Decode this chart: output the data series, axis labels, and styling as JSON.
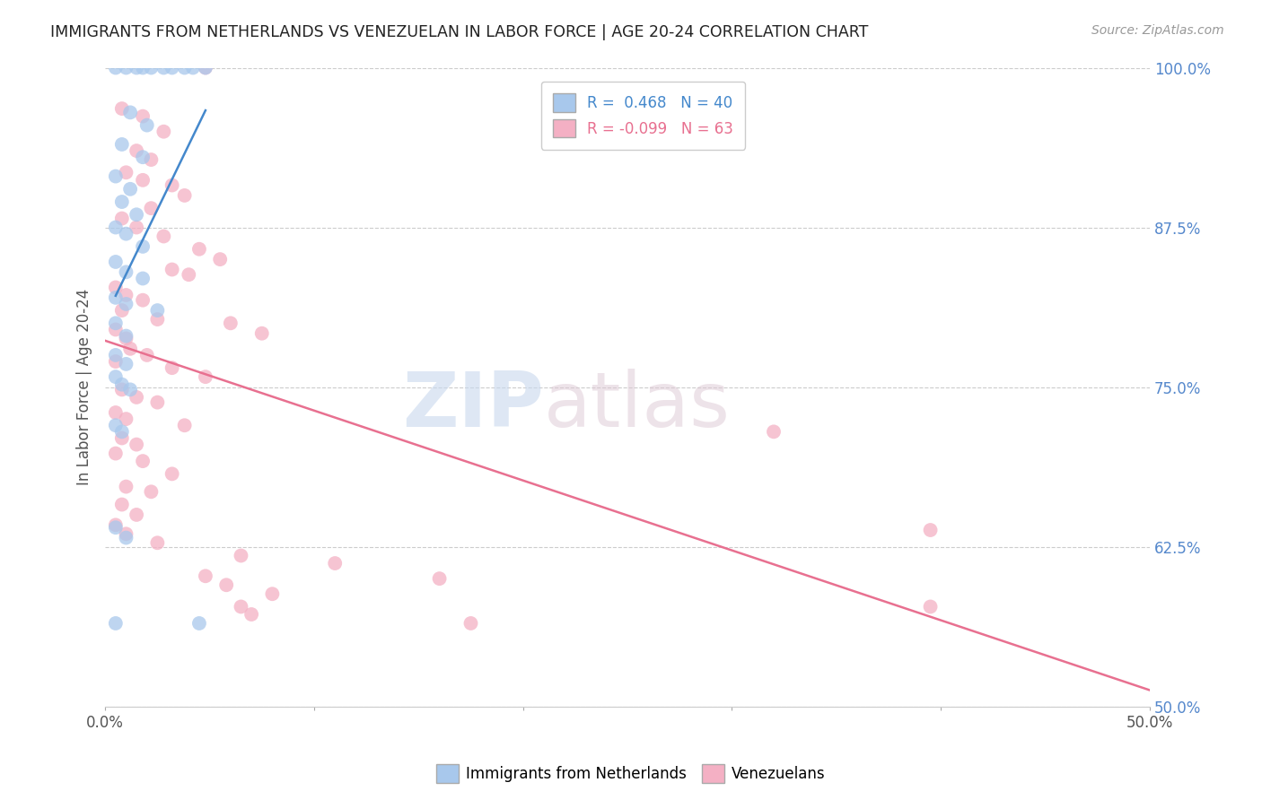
{
  "title": "IMMIGRANTS FROM NETHERLANDS VS VENEZUELAN IN LABOR FORCE | AGE 20-24 CORRELATION CHART",
  "source": "Source: ZipAtlas.com",
  "ylabel": "In Labor Force | Age 20-24",
  "xlim": [
    0.0,
    0.5
  ],
  "ylim": [
    0.5,
    1.0
  ],
  "xticks": [
    0.0,
    0.1,
    0.2,
    0.3,
    0.4,
    0.5
  ],
  "xticklabels": [
    "0.0%",
    "",
    "",
    "",
    "",
    "50.0%"
  ],
  "yticks": [
    0.5,
    0.625,
    0.75,
    0.875,
    1.0
  ],
  "yticklabels": [
    "50.0%",
    "62.5%",
    "75.0%",
    "87.5%",
    "100.0%"
  ],
  "blue_color": "#A8C8EC",
  "pink_color": "#F4B0C4",
  "blue_line_color": "#4488CC",
  "pink_line_color": "#E87090",
  "blue_points": [
    [
      0.005,
      1.0
    ],
    [
      0.01,
      1.0
    ],
    [
      0.015,
      1.0
    ],
    [
      0.018,
      1.0
    ],
    [
      0.022,
      1.0
    ],
    [
      0.028,
      1.0
    ],
    [
      0.032,
      1.0
    ],
    [
      0.038,
      1.0
    ],
    [
      0.042,
      1.0
    ],
    [
      0.048,
      1.0
    ],
    [
      0.012,
      0.965
    ],
    [
      0.02,
      0.955
    ],
    [
      0.008,
      0.94
    ],
    [
      0.018,
      0.93
    ],
    [
      0.005,
      0.915
    ],
    [
      0.012,
      0.905
    ],
    [
      0.008,
      0.895
    ],
    [
      0.015,
      0.885
    ],
    [
      0.005,
      0.875
    ],
    [
      0.01,
      0.87
    ],
    [
      0.018,
      0.86
    ],
    [
      0.005,
      0.848
    ],
    [
      0.01,
      0.84
    ],
    [
      0.018,
      0.835
    ],
    [
      0.005,
      0.82
    ],
    [
      0.01,
      0.815
    ],
    [
      0.025,
      0.81
    ],
    [
      0.005,
      0.8
    ],
    [
      0.01,
      0.79
    ],
    [
      0.005,
      0.775
    ],
    [
      0.01,
      0.768
    ],
    [
      0.005,
      0.758
    ],
    [
      0.008,
      0.752
    ],
    [
      0.012,
      0.748
    ],
    [
      0.005,
      0.72
    ],
    [
      0.008,
      0.715
    ],
    [
      0.005,
      0.64
    ],
    [
      0.01,
      0.632
    ],
    [
      0.005,
      0.565
    ],
    [
      0.045,
      0.565
    ]
  ],
  "pink_points": [
    [
      0.048,
      1.0
    ],
    [
      0.008,
      0.968
    ],
    [
      0.018,
      0.962
    ],
    [
      0.028,
      0.95
    ],
    [
      0.015,
      0.935
    ],
    [
      0.022,
      0.928
    ],
    [
      0.01,
      0.918
    ],
    [
      0.018,
      0.912
    ],
    [
      0.032,
      0.908
    ],
    [
      0.038,
      0.9
    ],
    [
      0.022,
      0.89
    ],
    [
      0.008,
      0.882
    ],
    [
      0.015,
      0.875
    ],
    [
      0.028,
      0.868
    ],
    [
      0.045,
      0.858
    ],
    [
      0.055,
      0.85
    ],
    [
      0.032,
      0.842
    ],
    [
      0.04,
      0.838
    ],
    [
      0.005,
      0.828
    ],
    [
      0.01,
      0.822
    ],
    [
      0.018,
      0.818
    ],
    [
      0.008,
      0.81
    ],
    [
      0.025,
      0.803
    ],
    [
      0.06,
      0.8
    ],
    [
      0.005,
      0.795
    ],
    [
      0.01,
      0.788
    ],
    [
      0.075,
      0.792
    ],
    [
      0.012,
      0.78
    ],
    [
      0.02,
      0.775
    ],
    [
      0.005,
      0.77
    ],
    [
      0.032,
      0.765
    ],
    [
      0.048,
      0.758
    ],
    [
      0.008,
      0.748
    ],
    [
      0.015,
      0.742
    ],
    [
      0.025,
      0.738
    ],
    [
      0.005,
      0.73
    ],
    [
      0.01,
      0.725
    ],
    [
      0.038,
      0.72
    ],
    [
      0.008,
      0.71
    ],
    [
      0.015,
      0.705
    ],
    [
      0.005,
      0.698
    ],
    [
      0.018,
      0.692
    ],
    [
      0.032,
      0.682
    ],
    [
      0.01,
      0.672
    ],
    [
      0.022,
      0.668
    ],
    [
      0.008,
      0.658
    ],
    [
      0.015,
      0.65
    ],
    [
      0.005,
      0.642
    ],
    [
      0.01,
      0.635
    ],
    [
      0.025,
      0.628
    ],
    [
      0.065,
      0.618
    ],
    [
      0.11,
      0.612
    ],
    [
      0.048,
      0.602
    ],
    [
      0.058,
      0.595
    ],
    [
      0.08,
      0.588
    ],
    [
      0.065,
      0.578
    ],
    [
      0.07,
      0.572
    ],
    [
      0.16,
      0.6
    ],
    [
      0.175,
      0.565
    ],
    [
      0.32,
      0.715
    ],
    [
      0.395,
      0.638
    ],
    [
      0.395,
      0.578
    ]
  ]
}
